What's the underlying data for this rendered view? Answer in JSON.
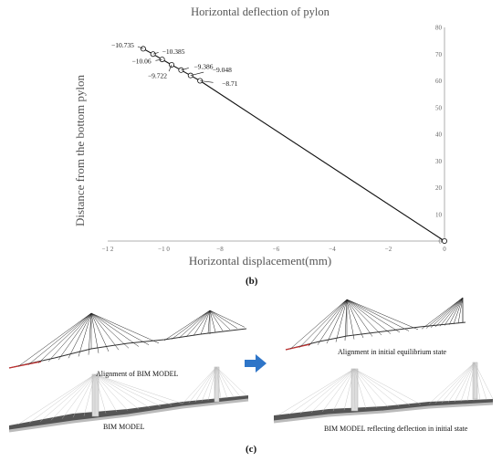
{
  "chart_data": {
    "type": "line",
    "title": "Horizontal deflection of pylon",
    "xlabel": "Horizontal displacement(mm)",
    "ylabel": "Distance from the bottom pylon",
    "xlim": [
      -12,
      0
    ],
    "ylim": [
      0,
      80
    ],
    "x_ticks": [
      "−1 2",
      "−1 0",
      "−8",
      "−6",
      "−4",
      "−2",
      "0"
    ],
    "y_ticks": [
      "0",
      "10",
      "20",
      "30",
      "40",
      "50",
      "60",
      "70",
      "80"
    ],
    "grid": false,
    "series": [
      {
        "values": [
          {
            "x": -10.735,
            "y": 72
          },
          {
            "x": -10.385,
            "y": 70
          },
          {
            "x": -10.06,
            "y": 68
          },
          {
            "x": -9.722,
            "y": 66
          },
          {
            "x": -9.386,
            "y": 64
          },
          {
            "x": -9.048,
            "y": 62
          },
          {
            "x": -8.71,
            "y": 60
          },
          {
            "x": 0,
            "y": 0
          }
        ]
      }
    ],
    "annotations": [
      "−10.735",
      "−10.385",
      "−10.06",
      "−9.722",
      "−9.386",
      "−9.048",
      "−8.71"
    ]
  },
  "figure": {
    "caption_b": "(b)",
    "caption_c": "(c)",
    "panels": {
      "alignment_bim": "Alignment of BIM MODEL",
      "bim_model": "BIM MODEL",
      "alignment_equilibrium": "Alignment in initial equilibrium state",
      "bim_reflecting": "BIM MODEL reflecting deflection in initial state"
    },
    "arrow_color": "#2e75c8"
  }
}
